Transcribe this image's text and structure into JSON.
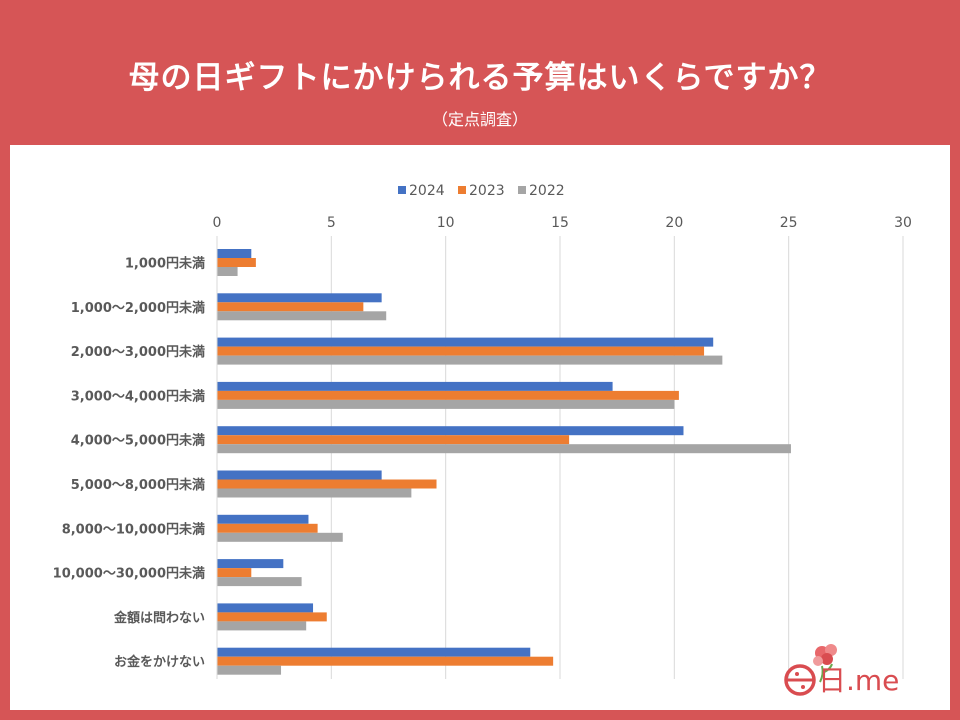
{
  "title": "母の日ギフトにかけられる予算はいくらですか？",
  "subtitle": "（定点調査）",
  "logo_text": "日.me",
  "colors": {
    "background": "#d65556",
    "series_2024": "#4472c4",
    "series_2023": "#ed7d31",
    "series_2022": "#a5a5a5"
  },
  "chart_data": {
    "type": "bar",
    "orientation": "horizontal",
    "title": "母の日ギフトにかけられる予算はいくらですか？",
    "subtitle": "（定点調査）",
    "xlabel": "",
    "ylabel": "",
    "xlim": [
      0,
      30
    ],
    "xticks": [
      0,
      5,
      10,
      15,
      20,
      25,
      30
    ],
    "grid": true,
    "legend_position": "top",
    "categories": [
      "1,000円未満",
      "1,000〜2,000円未満",
      "2,000〜3,000円未満",
      "3,000〜4,000円未満",
      "4,000〜5,000円未満",
      "5,000〜8,000円未満",
      "8,000〜10,000円未満",
      "10,000〜30,000円未満",
      "金額は問わない",
      "お金をかけない"
    ],
    "series": [
      {
        "name": "2024",
        "color": "#4472c4",
        "values": [
          1.5,
          7.2,
          21.7,
          17.3,
          20.4,
          7.2,
          4.0,
          2.9,
          4.2,
          13.7
        ]
      },
      {
        "name": "2023",
        "color": "#ed7d31",
        "values": [
          1.7,
          6.4,
          21.3,
          20.2,
          15.4,
          9.6,
          4.4,
          1.5,
          4.8,
          14.7
        ]
      },
      {
        "name": "2022",
        "color": "#a5a5a5",
        "values": [
          0.9,
          7.4,
          22.1,
          20.0,
          25.1,
          8.5,
          5.5,
          3.7,
          3.9,
          2.8
        ]
      }
    ]
  }
}
